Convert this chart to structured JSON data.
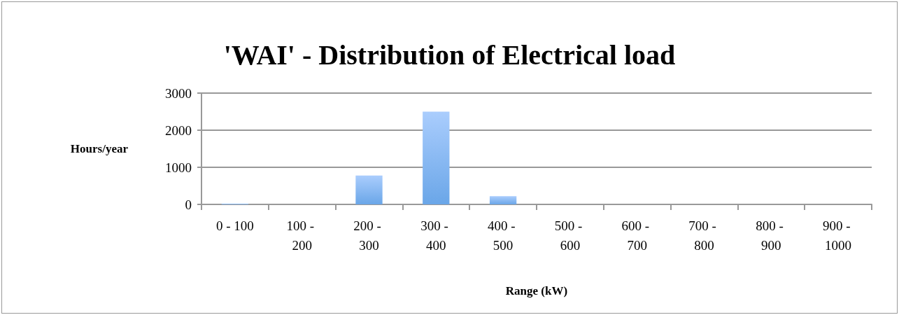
{
  "chart_data": {
    "type": "bar",
    "title": "'WAI' - Distribution of Electrical load",
    "xlabel": "Range (kW)",
    "ylabel": "Hours/year",
    "categories": [
      "0 - 100",
      "100 - 200",
      "200 - 300",
      "300 - 400",
      "400 - 500",
      "500 - 600",
      "600 - 700",
      "700 - 800",
      "800 - 900",
      "900 - 1000"
    ],
    "values": [
      20,
      0,
      780,
      2500,
      220,
      0,
      0,
      0,
      0,
      0
    ],
    "color": "#6aa6e8",
    "ylim": [
      0,
      3000
    ],
    "yticks": [
      0,
      1000,
      2000,
      3000
    ],
    "grid": "y"
  }
}
